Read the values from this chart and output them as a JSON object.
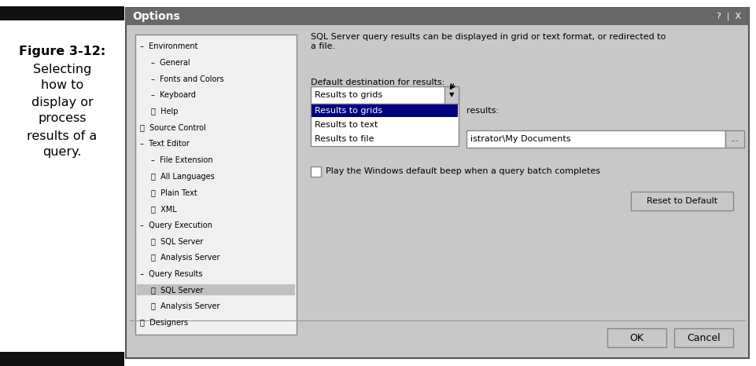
{
  "fig_width": 9.62,
  "fig_height": 4.66,
  "dpi": 100,
  "bg_color": "#ffffff",
  "left_caption_lines": [
    "Figure 3-12:",
    "Selecting",
    "how to",
    "display or",
    "process",
    "results of a",
    "query."
  ],
  "caption_fontsize": 11.5,
  "dialog_title": "Options",
  "title_bar_color": "#686868",
  "dialog_bg": "#c8c8c8",
  "left_panel_bg": "#f0f0f0",
  "left_panel_items": [
    {
      "text": "–  Environment",
      "indent": 0,
      "bold": false,
      "highlight": false
    },
    {
      "text": "–  General",
      "indent": 1,
      "bold": false,
      "highlight": false
    },
    {
      "text": "–  Fonts and Colors",
      "indent": 1,
      "bold": false,
      "highlight": false
    },
    {
      "text": "–  Keyboard",
      "indent": 1,
      "bold": false,
      "highlight": false
    },
    {
      "text": "➕  Help",
      "indent": 1,
      "bold": false,
      "highlight": false
    },
    {
      "text": "➕  Source Control",
      "indent": 0,
      "bold": false,
      "highlight": false
    },
    {
      "text": "–  Text Editor",
      "indent": 0,
      "bold": false,
      "highlight": false
    },
    {
      "text": "–  File Extension",
      "indent": 1,
      "bold": false,
      "highlight": false
    },
    {
      "text": "➕  All Languages",
      "indent": 1,
      "bold": false,
      "highlight": false
    },
    {
      "text": "➕  Plain Text",
      "indent": 1,
      "bold": false,
      "highlight": false
    },
    {
      "text": "➕  XML",
      "indent": 1,
      "bold": false,
      "highlight": false
    },
    {
      "text": "–  Query Execution",
      "indent": 0,
      "bold": false,
      "highlight": false
    },
    {
      "text": "➕  SQL Server",
      "indent": 1,
      "bold": false,
      "highlight": false
    },
    {
      "text": "➕  Analysis Server",
      "indent": 1,
      "bold": false,
      "highlight": false
    },
    {
      "text": "–  Query Results",
      "indent": 0,
      "bold": false,
      "highlight": false
    },
    {
      "text": "➕  SQL Server",
      "indent": 1,
      "bold": false,
      "highlight": true
    },
    {
      "text": "➕  Analysis Server",
      "indent": 1,
      "bold": false,
      "highlight": false
    },
    {
      "text": "➕  Designers",
      "indent": 0,
      "bold": false,
      "highlight": false
    }
  ],
  "right_desc": "SQL Server query results can be displayed in grid or text format, or redirected to\na file.",
  "dropdown_label": "Default destination for results:",
  "dropdown_value": "Results to grids",
  "dropdown_items": [
    "Results to grids",
    "Results to text",
    "Results to file"
  ],
  "dropdown_selected_idx": 0,
  "path_label": "results:",
  "path_value": "istrator\\My Documents",
  "checkbox_text": "Play the Windows default beep when a query batch completes",
  "reset_button": "Reset to Default",
  "ok_button": "OK",
  "cancel_button": "Cancel",
  "highlight_color": "#c0c0c0",
  "highlight_text_color": "#000000",
  "dropdown_highlight_color": "#000080",
  "dropdown_highlight_text": "#ffffff",
  "black_bar_color": "#111111"
}
